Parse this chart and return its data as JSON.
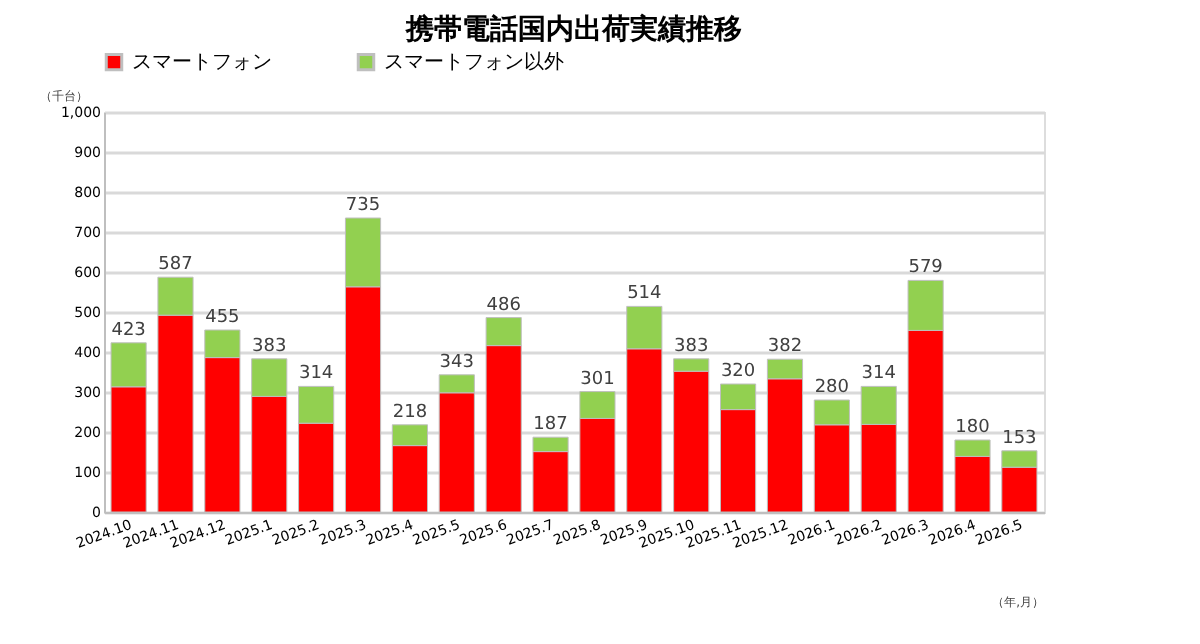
{
  "chart_data": {
    "type": "bar",
    "title": "携帯電話国内出荷実績推移",
    "stacked": true,
    "categories": [
      "2024.10",
      "2024.11",
      "2024.12",
      "2025.1",
      "2025.2",
      "2025.3",
      "2025.4",
      "2025.5",
      "2025.6",
      "2025.7",
      "2025.8",
      "2025.9",
      "2025.10",
      "2025.11",
      "2025.12",
      "2026.1",
      "2026.2",
      "2026.3",
      "2026.4",
      "2026.5"
    ],
    "series": [
      {
        "name": "スマートフォン",
        "color": "#ff0000",
        "values": [
          313,
          492,
          386,
          289,
          222,
          563,
          166,
          298,
          416,
          151,
          234,
          408,
          352,
          256,
          333,
          218,
          219,
          454,
          139,
          112
        ]
      },
      {
        "name": "スマートフォン以外",
        "color": "#92d050",
        "values": [
          110,
          95,
          69,
          94,
          92,
          172,
          52,
          45,
          70,
          36,
          67,
          106,
          31,
          64,
          49,
          62,
          95,
          125,
          41,
          41
        ]
      }
    ],
    "totals": [
      "423",
      "587",
      "455",
      "383",
      "314",
      "735",
      "218",
      "343",
      "486",
      "187",
      "301",
      "514",
      "383",
      "320",
      "382",
      "280",
      "314",
      "579",
      "180",
      "153"
    ],
    "ylim": [
      0,
      1000
    ],
    "yticks": [
      0,
      100,
      200,
      300,
      400,
      500,
      600,
      700,
      800,
      900,
      {
        "value": 1000,
        "label": "1,000"
      }
    ],
    "grid": "y",
    "legend": "top",
    "annotations": [
      "（千台）",
      "（年,月）"
    ]
  }
}
